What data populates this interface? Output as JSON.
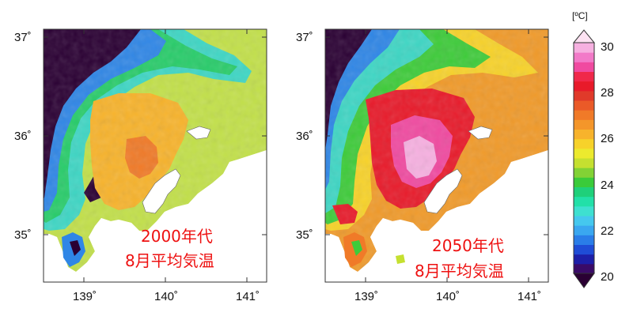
{
  "maps": [
    {
      "id": "2000s",
      "caption_line1": "2000年代",
      "caption_line2": "8月平均気温",
      "y_ticks": [
        "37˚",
        "36˚",
        "35˚"
      ],
      "x_ticks": [
        "139˚",
        "140˚",
        "141˚"
      ]
    },
    {
      "id": "2050s",
      "caption_line1": "2050年代",
      "caption_line2": "8月平均気温",
      "y_ticks": [
        "37˚",
        "36˚",
        "35˚"
      ],
      "x_ticks": [
        "139˚",
        "140˚",
        "141˚"
      ]
    }
  ],
  "colorbar": {
    "unit": "[ºC]",
    "labels": [
      "30",
      "28",
      "26",
      "24",
      "22",
      "20"
    ],
    "min": 20,
    "max": 30,
    "step": 0.5,
    "colors": [
      "#2a0033",
      "#3a0b68",
      "#1d1fa8",
      "#1f4cd6",
      "#2a7de8",
      "#3aa7f0",
      "#45c8ee",
      "#3ee0d0",
      "#22e0a8",
      "#1fd07a",
      "#3acb3a",
      "#82d235",
      "#c5e030",
      "#ecea2e",
      "#f7d22a",
      "#f7b32c",
      "#f4962a",
      "#f07a28",
      "#ea5a28",
      "#e03a2a",
      "#e81a2a",
      "#f0284a",
      "#f04aa0",
      "#f27ac8",
      "#f6b0e0",
      "#fde2f2"
    ],
    "colors_note": ""
  }
}
